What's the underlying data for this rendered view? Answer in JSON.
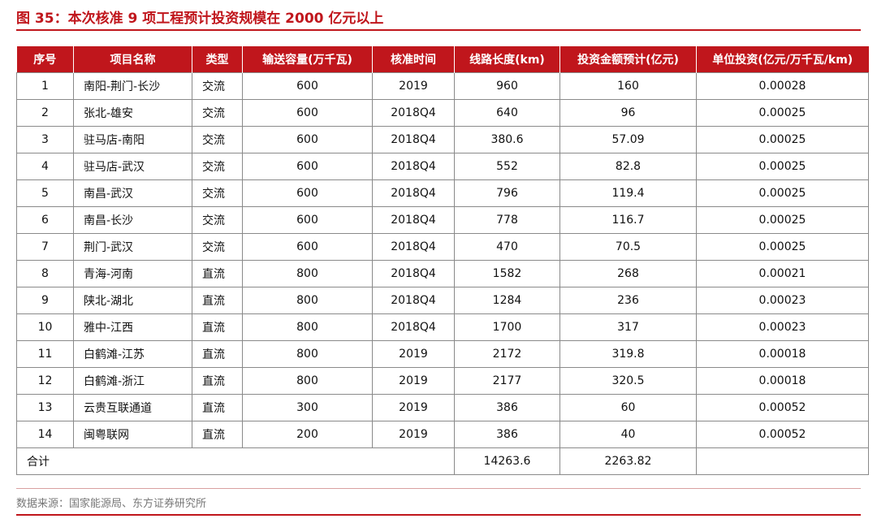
{
  "title": "图 35：本次核准 9 项工程预计投资规模在 2000 亿元以上",
  "table": {
    "headers": [
      "序号",
      "项目名称",
      "类型",
      "输送容量(万千瓦)",
      "核准时间",
      "线路长度(km)",
      "投资金额预计(亿元)",
      "单位投资(亿元/万千瓦/km)"
    ],
    "rows": [
      [
        "1",
        "南阳-荆门-长沙",
        "交流",
        "600",
        "2019",
        "960",
        "160",
        "0.00028"
      ],
      [
        "2",
        "张北-雄安",
        "交流",
        "600",
        "2018Q4",
        "640",
        "96",
        "0.00025"
      ],
      [
        "3",
        "驻马店-南阳",
        "交流",
        "600",
        "2018Q4",
        "380.6",
        "57.09",
        "0.00025"
      ],
      [
        "4",
        "驻马店-武汉",
        "交流",
        "600",
        "2018Q4",
        "552",
        "82.8",
        "0.00025"
      ],
      [
        "5",
        "南昌-武汉",
        "交流",
        "600",
        "2018Q4",
        "796",
        "119.4",
        "0.00025"
      ],
      [
        "6",
        "南昌-长沙",
        "交流",
        "600",
        "2018Q4",
        "778",
        "116.7",
        "0.00025"
      ],
      [
        "7",
        "荆门-武汉",
        "交流",
        "600",
        "2018Q4",
        "470",
        "70.5",
        "0.00025"
      ],
      [
        "8",
        "青海-河南",
        "直流",
        "800",
        "2018Q4",
        "1582",
        "268",
        "0.00021"
      ],
      [
        "9",
        "陕北-湖北",
        "直流",
        "800",
        "2018Q4",
        "1284",
        "236",
        "0.00023"
      ],
      [
        "10",
        "雅中-江西",
        "直流",
        "800",
        "2018Q4",
        "1700",
        "317",
        "0.00023"
      ],
      [
        "11",
        "白鹤滩-江苏",
        "直流",
        "800",
        "2019",
        "2172",
        "319.8",
        "0.00018"
      ],
      [
        "12",
        "白鹤滩-浙江",
        "直流",
        "800",
        "2019",
        "2177",
        "320.5",
        "0.00018"
      ],
      [
        "13",
        "云贵互联通道",
        "直流",
        "300",
        "2019",
        "386",
        "60",
        "0.00052"
      ],
      [
        "14",
        "闽粤联网",
        "直流",
        "200",
        "2019",
        "386",
        "40",
        "0.00052"
      ]
    ],
    "total": {
      "label": "合计",
      "length": "14263.6",
      "investment": "2263.82"
    }
  },
  "source": "数据来源：国家能源局、东方证券研究所"
}
